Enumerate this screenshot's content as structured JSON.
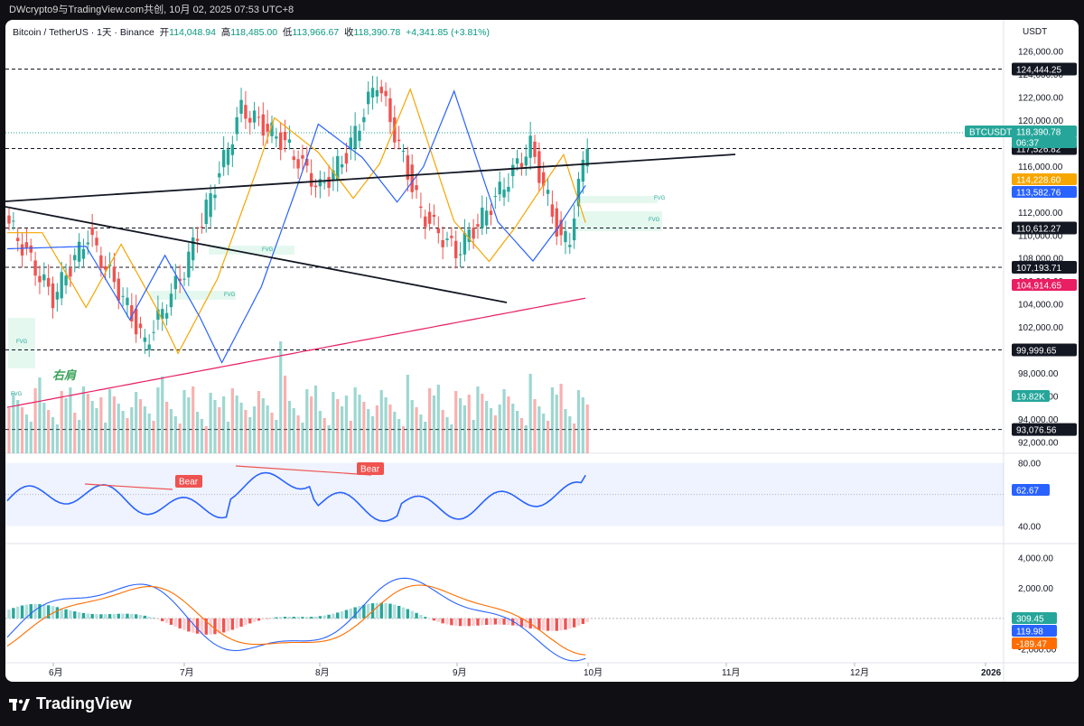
{
  "header": {
    "title": "DWcrypto9与TradingView.com共创, 10月 02, 2025 07:53 UTC+8"
  },
  "legend": {
    "symbol": "Bitcoin / TetherUS · 1天 · Binance",
    "open_label": "开",
    "open": "114,048.94",
    "high_label": "高",
    "high": "118,485.00",
    "low_label": "低",
    "low": "113,966.67",
    "close_label": "收",
    "close": "118,390.78",
    "change": "+4,341.85 (+3.81%)"
  },
  "axis": {
    "currency": "USDT",
    "price_ticks": [
      "126,000.00",
      "124,000.00",
      "122,000.00",
      "120,000.00",
      "118,000.00",
      "116,000.00",
      "114,000.00",
      "112,000.00",
      "110,000.00",
      "108,000.00",
      "106,000.00",
      "104,000.00",
      "102,000.00",
      "100,000.00",
      "98,000.00",
      "96,000.00",
      "94,000.00",
      "92,000.00"
    ],
    "rsi_ticks": [
      "80.00",
      "40.00"
    ],
    "macd_ticks": [
      "4,000.00",
      "2,000.00",
      "-2,000.00"
    ],
    "time_ticks": [
      "6月",
      "7月",
      "8月",
      "9月",
      "10月",
      "11月",
      "12月",
      "2026"
    ]
  },
  "price_labels": {
    "level1": "124,444.25",
    "symbol_tag": "BTCUSDT",
    "last_price": "118,390.78",
    "countdown": "06:37",
    "level2": "117,526.82",
    "ema_fast": "114,228.60",
    "ema_slow": "113,582.76",
    "level3": "110,612.27",
    "level4": "107,193.71",
    "ma200": "104,914.65",
    "level5": "99,999.65",
    "volume": "19.82K",
    "level6": "93,076.56",
    "rsi_value": "62.67",
    "macd_hist": "309.45",
    "macd_line": "119.98",
    "macd_signal": "-189.47"
  },
  "annotations": {
    "right_shoulder": "右肩",
    "fvg": "FVG",
    "bear1": "Bear",
    "bear2": "Bear"
  },
  "brand": {
    "logo_text": "TradingView"
  },
  "colors": {
    "up": "#26a69a",
    "down": "#ef5350",
    "ema_fast": "#f7a600",
    "ema_slow": "#2962ff",
    "ma200": "#e91e63",
    "rsi": "#2962ff",
    "macd_signal": "#ff6d00"
  },
  "chart_data": {
    "type": "line",
    "series": [
      {
        "name": "BTCUSDT",
        "x": [
          "2025-05-22",
          "2025-06-01",
          "2025-06-09",
          "2025-06-17",
          "2025-06-22",
          "2025-07-01",
          "2025-07-10",
          "2025-07-14",
          "2025-07-24",
          "2025-08-01",
          "2025-08-07",
          "2025-08-14",
          "2025-08-24",
          "2025-09-01",
          "2025-09-07",
          "2025-09-18",
          "2025-09-25",
          "2025-09-27",
          "2025-10-01"
        ],
        "values": [
          111000,
          104500,
          110000,
          104500,
          100500,
          107000,
          116500,
          121000,
          118000,
          114000,
          117000,
          123500,
          112000,
          108500,
          111500,
          117800,
          109500,
          109800,
          118390.78
        ]
      },
      {
        "name": "EMA fast",
        "values_at_end": 114228.6
      },
      {
        "name": "EMA slow",
        "values_at_end": 113582.76
      },
      {
        "name": "MA200",
        "values_at_end": 104914.65
      }
    ],
    "horizontal_levels": [
      124444.25,
      117526.82,
      110612.27,
      107193.71,
      99999.65,
      93076.56
    ],
    "ylim": [
      91000,
      127000
    ],
    "rsi": {
      "last": 62.67,
      "range": [
        30,
        85
      ],
      "band": [
        40,
        80
      ]
    },
    "macd": {
      "histogram": 309.45,
      "macd": 119.98,
      "signal": -189.47
    },
    "volume_last": "19.82K",
    "xlabel": "",
    "ylabel": "USDT"
  }
}
